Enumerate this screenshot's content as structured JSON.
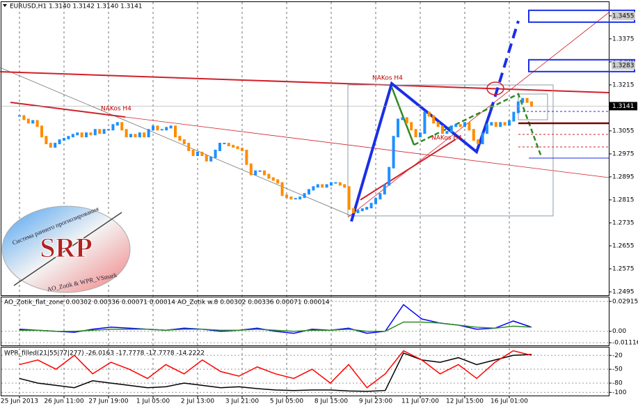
{
  "chart_data": [
    {
      "type": "candle-line",
      "title": "EURUSD,H1  1.3140 1.3142 1.3140 1.3141",
      "categories": [
        "25 Jun 2013",
        null,
        null,
        null,
        null,
        null,
        null,
        null,
        null,
        null,
        "26 Jun 11:00",
        null,
        null,
        null,
        null,
        null,
        null,
        null,
        null,
        null,
        "27 Jun 19:00",
        null,
        null,
        null,
        null,
        null,
        null,
        null,
        null,
        null,
        "1 Jul 05:00",
        null,
        null,
        null,
        null,
        null,
        null,
        null,
        null,
        null,
        "2 Jul 13:00",
        null,
        null,
        null,
        null,
        null,
        null,
        null,
        null,
        null,
        "3 Jul 21:00",
        null,
        null,
        null,
        null,
        null,
        null,
        null,
        null,
        null,
        "5 Jul 05:00",
        null,
        null,
        null,
        null,
        null,
        null,
        null,
        null,
        null,
        "8 Jul 15:00",
        null,
        null,
        null,
        null,
        null,
        null,
        null,
        null,
        null,
        "9 Jul 23:00",
        null,
        null,
        null,
        null,
        null,
        null,
        null,
        null,
        null,
        "11 Jul 07:00",
        null,
        null,
        null,
        null,
        null,
        null,
        null,
        null,
        null,
        "12 Jul 15:00",
        null,
        null,
        null,
        null,
        null,
        null,
        null,
        null,
        null,
        "16 Jul 01:00",
        null,
        null,
        null,
        null,
        null
      ],
      "values": [
        1.3107,
        1.3095,
        1.3083,
        1.309,
        1.3071,
        1.3035,
        1.3011,
        1.2999,
        1.3011,
        1.3023,
        1.3028,
        1.3035,
        1.3042,
        1.3047,
        1.3035,
        1.3047,
        1.3042,
        1.3059,
        1.3047,
        1.3059,
        1.3059,
        1.3076,
        1.3083,
        1.3059,
        1.3035,
        1.3042,
        1.3035,
        1.3047,
        1.3035,
        1.3059,
        1.3071,
        1.3059,
        1.3059,
        1.3066,
        1.3071,
        1.3035,
        1.3023,
        1.3011,
        1.2987,
        1.297,
        1.298,
        1.297,
        1.2951,
        1.2963,
        1.2987,
        1.3011,
        1.3011,
        1.3004,
        1.2999,
        1.2994,
        1.2987,
        1.2939,
        1.2903,
        1.2915,
        1.2915,
        1.2903,
        1.2891,
        1.2884,
        1.2874,
        1.2831,
        1.2824,
        1.2819,
        1.2819,
        1.2824,
        1.2836,
        1.285,
        1.286,
        1.2867,
        1.286,
        1.2867,
        1.2874,
        1.2874,
        1.2867,
        1.286,
        1.2783,
        1.2771,
        1.2778,
        1.2783,
        1.2788,
        1.2802,
        1.2819,
        1.2836,
        1.2867,
        1.2927,
        1.3035,
        1.3095,
        1.31,
        1.3083,
        1.3059,
        1.3035,
        1.3047,
        1.3119,
        1.3107,
        1.3083,
        1.3071,
        1.3047,
        1.3052,
        1.3071,
        1.3076,
        1.3071,
        1.3083,
        1.3059,
        1.3023,
        1.3011,
        1.3047,
        1.3076,
        1.3083,
        1.3071,
        1.3083,
        1.3076,
        1.309,
        1.3119,
        1.3155,
        1.3167,
        1.3155,
        1.3141
      ],
      "up_color": "#1e90ff",
      "down_color": "#ff8c00",
      "ylim": [
        1.2483,
        1.3503
      ],
      "yticks": [
        1.3455,
        1.3375,
        1.3295,
        1.3215,
        1.3135,
        1.3055,
        1.2975,
        1.2895,
        1.2815,
        1.2735,
        1.2655,
        1.2575,
        1.2495
      ],
      "grid": true,
      "last_price": 1.3141,
      "box_levels": [
        1.3455,
        1.3283
      ],
      "annotations": [
        "NAKos H4",
        "NAKos H4",
        "NAKos H4"
      ],
      "logo": {
        "title": "SRP",
        "subtitle": "Система раннего прогнозирования",
        "credit": "AO_Zotik & WPR_VSmark"
      }
    },
    {
      "type": "line",
      "title": "AO_Zotik_flat_zone 0.00302 0.00336 0.00071 0.00014  AO_Zotik w.8 0.00302 0.00336 0.00071 0.00014",
      "series": [
        {
          "color": "#0000ff",
          "values": [
            0.002,
            0.001,
            0.0,
            -0.001,
            0.002,
            0.004,
            0.003,
            0.002,
            0.001,
            0.003,
            0.002,
            0.0,
            0.001,
            0.003,
            0.0,
            -0.002,
            0.002,
            0.001,
            0.003,
            -0.002,
            0.0,
            0.026,
            0.012,
            0.008,
            0.006,
            0.002,
            0.003,
            0.01,
            0.004
          ]
        },
        {
          "color": "#2e8b22",
          "values": [
            0.001,
            0.001,
            0.0,
            0.0,
            0.001,
            0.002,
            0.002,
            0.002,
            0.001,
            0.002,
            0.002,
            0.001,
            0.001,
            0.002,
            0.001,
            0.0,
            0.001,
            0.001,
            0.002,
            0.0,
            0.0,
            0.009,
            0.009,
            0.008,
            0.006,
            0.004,
            0.003,
            0.005,
            0.004
          ]
        }
      ],
      "ylim": [
        -0.0138,
        0.0331
      ],
      "yticks": [
        0.02915,
        {
          "value": 0,
          "label": "0.00"
        },
        -0.01116
      ]
    },
    {
      "type": "line",
      "title": "WPR_filled(21|55|77|277) -26.0163 -17.7778 -17.7778 -14.2222",
      "series": [
        {
          "color": "#000000",
          "values": [
            -70,
            -80,
            -85,
            -90,
            -75,
            -80,
            -85,
            -90,
            -88,
            -80,
            -85,
            -90,
            -88,
            -92,
            -95,
            -96,
            -95,
            -95,
            -97,
            -98,
            -96,
            -15,
            -30,
            -35,
            -25,
            -40,
            -30,
            -20,
            -18
          ]
        },
        {
          "color": "#ff0000",
          "values": [
            -40,
            -30,
            -50,
            -20,
            -60,
            -35,
            -50,
            -70,
            -40,
            -60,
            -30,
            -55,
            -65,
            -45,
            -60,
            -70,
            -50,
            -80,
            -40,
            -90,
            -60,
            -10,
            -30,
            -60,
            -40,
            -70,
            -35,
            -10,
            -20
          ]
        }
      ],
      "ylim": [
        -107,
        -3
      ],
      "yticks": [
        -20,
        -50,
        -80,
        -100
      ]
    }
  ]
}
